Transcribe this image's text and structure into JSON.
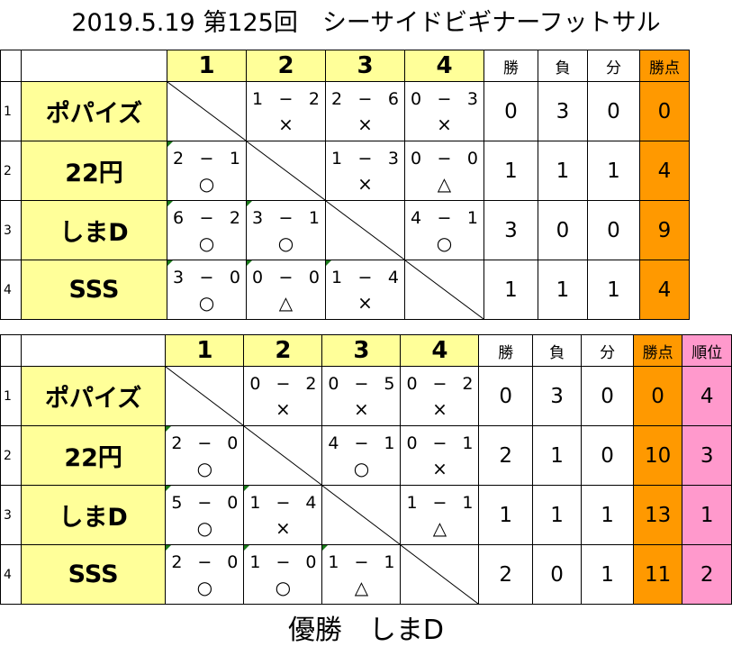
{
  "title": "2019.5.19 第125回　シーサイドビギナーフットサル",
  "footer": "優勝　しまD",
  "columns": {
    "nums": [
      "1",
      "2",
      "3",
      "4"
    ],
    "win": "勝",
    "loss": "負",
    "draw": "分",
    "points": "勝点",
    "rank": "順位"
  },
  "table1": {
    "rows": [
      {
        "idx": "1",
        "team": "ポパイズ",
        "cells": [
          null,
          {
            "score": "1 − 2",
            "result": "×"
          },
          {
            "score": "2 − 6",
            "result": "×"
          },
          {
            "score": "0 − 3",
            "result": "×"
          }
        ],
        "win": "0",
        "loss": "3",
        "draw": "0",
        "points": "0"
      },
      {
        "idx": "2",
        "team": "22円",
        "cells": [
          {
            "score": "2 − 1",
            "result": "○"
          },
          null,
          {
            "score": "1 − 3",
            "result": "×"
          },
          {
            "score": "0 − 0",
            "result": "△"
          }
        ],
        "win": "1",
        "loss": "1",
        "draw": "1",
        "points": "4"
      },
      {
        "idx": "3",
        "team": "しまD",
        "cells": [
          {
            "score": "6 − 2",
            "result": "○"
          },
          {
            "score": "3 − 1",
            "result": "○"
          },
          null,
          {
            "score": "4 − 1",
            "result": "○"
          }
        ],
        "win": "3",
        "loss": "0",
        "draw": "0",
        "points": "9"
      },
      {
        "idx": "4",
        "team": "SSS",
        "cells": [
          {
            "score": "3 − 0",
            "result": "○"
          },
          {
            "score": "0 − 0",
            "result": "△"
          },
          {
            "score": "1 − 4",
            "result": "×"
          },
          null
        ],
        "win": "1",
        "loss": "1",
        "draw": "1",
        "points": "4"
      }
    ]
  },
  "table2": {
    "rows": [
      {
        "idx": "1",
        "team": "ポパイズ",
        "cells": [
          null,
          {
            "score": "0 − 2",
            "result": "×"
          },
          {
            "score": "0 − 5",
            "result": "×"
          },
          {
            "score": "0 − 2",
            "result": "×"
          }
        ],
        "win": "0",
        "loss": "3",
        "draw": "0",
        "points": "0",
        "rank": "4"
      },
      {
        "idx": "2",
        "team": "22円",
        "cells": [
          {
            "score": "2 − 0",
            "result": "○"
          },
          null,
          {
            "score": "4 − 1",
            "result": "○"
          },
          {
            "score": "0 − 1",
            "result": "×"
          }
        ],
        "win": "2",
        "loss": "1",
        "draw": "0",
        "points": "10",
        "rank": "3"
      },
      {
        "idx": "3",
        "team": "しまD",
        "cells": [
          {
            "score": "5 − 0",
            "result": "○"
          },
          {
            "score": "1 − 4",
            "result": "×"
          },
          null,
          {
            "score": "1 − 1",
            "result": "△"
          }
        ],
        "win": "1",
        "loss": "1",
        "draw": "1",
        "points": "13",
        "rank": "1"
      },
      {
        "idx": "4",
        "team": "SSS",
        "cells": [
          {
            "score": "2 − 0",
            "result": "○"
          },
          {
            "score": "1 − 0",
            "result": "○"
          },
          {
            "score": "1 − 1",
            "result": "△"
          },
          null
        ],
        "win": "2",
        "loss": "0",
        "draw": "1",
        "points": "11",
        "rank": "2"
      }
    ]
  }
}
